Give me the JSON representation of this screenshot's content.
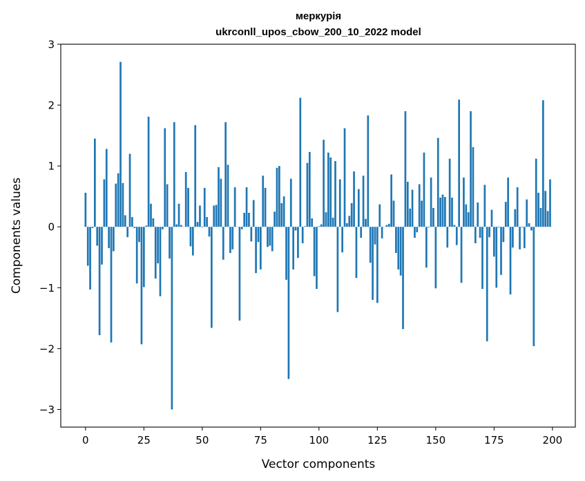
{
  "chart_data": {
    "type": "bar",
    "title": [
      "меркурія",
      "ukrconll_upos_cbow_200_10_2022 model"
    ],
    "xlabel": "Vector components",
    "ylabel": "Components values",
    "xlim": [
      -10.6,
      209.8
    ],
    "ylim": [
      -3.29,
      3.0
    ],
    "xticks": [
      0,
      25,
      50,
      75,
      100,
      125,
      150,
      175,
      200
    ],
    "yticks": [
      -3,
      -2,
      -1,
      0,
      1,
      2,
      3
    ],
    "ytick_labels": [
      "−3",
      "−2",
      "−1",
      "0",
      "1",
      "2",
      "3"
    ],
    "bar_width": 0.8,
    "color": "#1f77b4",
    "grid": false,
    "values": [
      0.56,
      -0.64,
      -1.03,
      -0.02,
      1.45,
      -0.31,
      -1.78,
      -0.62,
      0.78,
      1.28,
      -0.35,
      -1.9,
      -0.4,
      0.71,
      0.88,
      2.71,
      0.72,
      0.19,
      -0.17,
      1.2,
      0.16,
      -0.02,
      -0.93,
      -0.25,
      -1.93,
      -0.99,
      0.02,
      1.81,
      0.38,
      0.14,
      -0.85,
      -0.6,
      -1.14,
      -0.04,
      1.62,
      0.7,
      -0.52,
      -3.0,
      1.72,
      0.04,
      0.38,
      0.03,
      0.0,
      0.9,
      0.64,
      -0.32,
      -0.47,
      1.67,
      0.08,
      0.35,
      -0.01,
      0.64,
      0.16,
      -0.16,
      -1.66,
      0.35,
      0.36,
      0.98,
      0.79,
      -0.54,
      1.72,
      1.02,
      -0.43,
      -0.37,
      0.65,
      0.0,
      -1.54,
      -0.04,
      0.23,
      0.65,
      0.23,
      -0.24,
      0.44,
      -0.76,
      -0.25,
      -0.7,
      0.84,
      0.64,
      -0.33,
      -0.31,
      -0.4,
      0.25,
      0.97,
      1.0,
      0.39,
      0.5,
      -0.87,
      -2.5,
      0.79,
      -0.7,
      -0.06,
      -0.51,
      2.12,
      -0.27,
      0.01,
      1.05,
      1.23,
      0.14,
      -0.81,
      -1.02,
      0.01,
      0.04,
      1.43,
      0.24,
      1.22,
      1.14,
      0.15,
      1.08,
      -1.4,
      0.78,
      -0.42,
      1.62,
      0.06,
      0.18,
      0.39,
      0.91,
      -0.84,
      0.62,
      -0.18,
      0.84,
      0.13,
      1.83,
      -0.59,
      -1.2,
      -0.29,
      -1.25,
      0.37,
      -0.19,
      0.0,
      0.03,
      0.05,
      0.86,
      0.43,
      -0.43,
      -0.7,
      -0.8,
      -1.68,
      1.9,
      0.74,
      0.3,
      0.61,
      -0.18,
      -0.09,
      0.7,
      0.43,
      1.22,
      -0.67,
      -0.01,
      0.81,
      0.31,
      -1.01,
      1.46,
      0.48,
      0.53,
      0.49,
      -0.34,
      1.12,
      0.48,
      0.03,
      -0.3,
      2.09,
      -0.92,
      0.81,
      0.37,
      0.24,
      1.9,
      1.31,
      -0.27,
      0.4,
      -0.18,
      -1.02,
      0.69,
      -1.88,
      -0.17,
      0.28,
      -0.49,
      -1.0,
      -0.01,
      -0.79,
      -0.25,
      0.41,
      0.81,
      -1.11,
      -0.34,
      0.29,
      0.65,
      -0.37,
      -0.01,
      -0.35,
      0.45,
      0.06,
      -0.06,
      -1.96,
      1.12,
      0.56,
      0.31,
      2.08,
      0.59,
      0.26,
      0.78
    ]
  }
}
